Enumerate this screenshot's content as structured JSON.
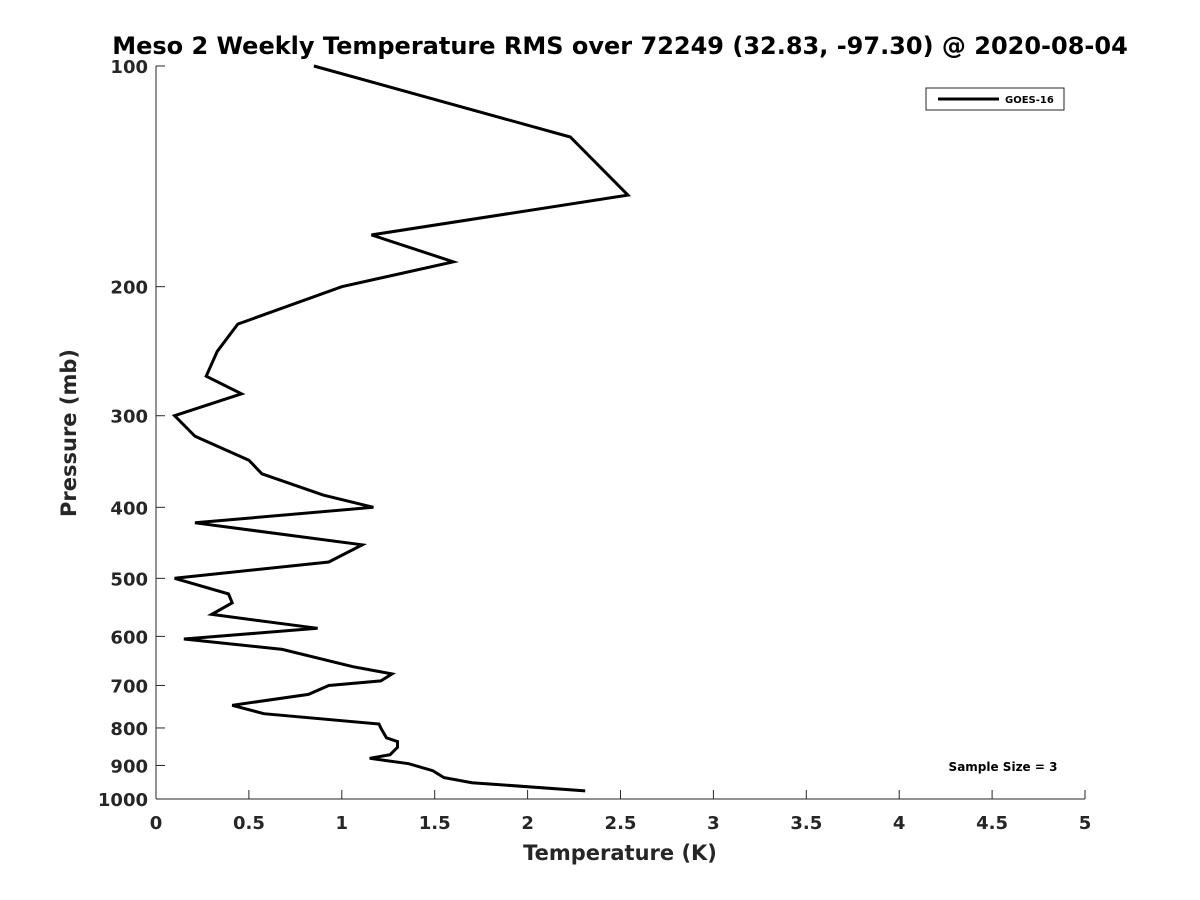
{
  "chart_data": {
    "type": "line",
    "title": "Meso 2 Weekly Temperature RMS over 72249 (32.83, -97.30) @ 2020-08-04",
    "xlabel": "Temperature (K)",
    "ylabel": "Pressure (mb)",
    "xlim": [
      0,
      5
    ],
    "ylim": [
      100,
      1000
    ],
    "y_scale": "log",
    "y_reversed": true,
    "x_ticks": [
      "0",
      "0.5",
      "1",
      "1.5",
      "2",
      "2.5",
      "3",
      "3.5",
      "4",
      "4.5",
      "5"
    ],
    "y_ticks": [
      "100",
      "200",
      "300",
      "400",
      "500",
      "600",
      "700",
      "800",
      "900",
      "1000"
    ],
    "grid": false,
    "legend_position": "top-right",
    "annotation": "Sample Size = 3",
    "series": [
      {
        "name": "GOES-16",
        "color": "#000000",
        "points": [
          [
            0.85,
            100
          ],
          [
            2.23,
            125
          ],
          [
            2.54,
            150
          ],
          [
            1.16,
            170
          ],
          [
            1.6,
            185
          ],
          [
            1.0,
            200
          ],
          [
            0.44,
            225
          ],
          [
            0.33,
            245
          ],
          [
            0.27,
            265
          ],
          [
            0.46,
            280
          ],
          [
            0.1,
            300
          ],
          [
            0.21,
            320
          ],
          [
            0.5,
            345
          ],
          [
            0.57,
            360
          ],
          [
            0.9,
            385
          ],
          [
            1.17,
            400
          ],
          [
            0.21,
            420
          ],
          [
            1.11,
            450
          ],
          [
            0.93,
            475
          ],
          [
            0.1,
            500
          ],
          [
            0.39,
            525
          ],
          [
            0.41,
            540
          ],
          [
            0.3,
            560
          ],
          [
            0.87,
            585
          ],
          [
            0.15,
            605
          ],
          [
            0.68,
            625
          ],
          [
            1.06,
            660
          ],
          [
            1.27,
            675
          ],
          [
            1.21,
            690
          ],
          [
            0.93,
            700
          ],
          [
            0.82,
            720
          ],
          [
            0.41,
            745
          ],
          [
            0.58,
            765
          ],
          [
            1.2,
            790
          ],
          [
            1.21,
            800
          ],
          [
            1.24,
            825
          ],
          [
            1.3,
            835
          ],
          [
            1.3,
            850
          ],
          [
            1.26,
            870
          ],
          [
            1.15,
            880
          ],
          [
            1.36,
            895
          ],
          [
            1.49,
            915
          ],
          [
            1.55,
            935
          ],
          [
            1.7,
            950
          ],
          [
            2.31,
            975
          ]
        ]
      }
    ]
  }
}
